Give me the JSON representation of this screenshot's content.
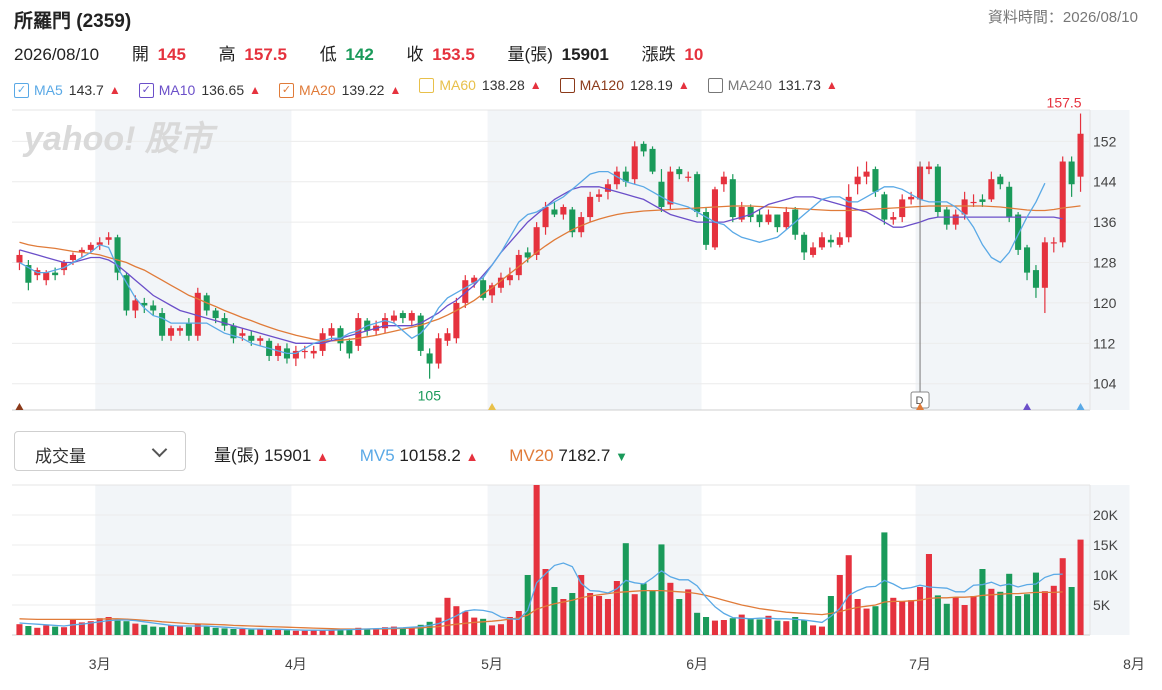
{
  "header": {
    "title": "所羅門 (2359)",
    "data_time_label": "資料時間：2026/08/10"
  },
  "quote": {
    "date": "2026/08/10",
    "open_label": "開",
    "open": "145",
    "high_label": "高",
    "high": "157.5",
    "low_label": "低",
    "low": "142",
    "close_label": "收",
    "close": "153.5",
    "volume_label": "量(張)",
    "volume": "15901",
    "change_label": "漲跌",
    "change": "10"
  },
  "ma_legend": [
    {
      "name": "MA5",
      "value": "143.7",
      "color": "#5aa9e6",
      "checked": true,
      "trend": "▲"
    },
    {
      "name": "MA10",
      "value": "136.65",
      "color": "#6b4fc9",
      "checked": true,
      "trend": "▲"
    },
    {
      "name": "MA20",
      "value": "139.22",
      "color": "#e07b39",
      "checked": true,
      "trend": "▲"
    },
    {
      "name": "MA60",
      "value": "138.28",
      "color": "#e8c04a",
      "checked": false,
      "trend": "▲"
    },
    {
      "name": "MA120",
      "value": "128.19",
      "color": "#8b3a1a",
      "checked": false,
      "trend": "▲"
    },
    {
      "name": "MA240",
      "value": "131.73",
      "color": "#777777",
      "checked": false,
      "trend": "▲"
    }
  ],
  "volume_panel": {
    "selector_label": "成交量",
    "vol_label": "量(張)",
    "vol_value": "15901",
    "vol_trend": "▲",
    "mv5_label": "MV5",
    "mv5_value": "10158.2",
    "mv5_trend": "▲",
    "mv20_label": "MV20",
    "mv20_value": "7182.7",
    "mv20_trend": "▼"
  },
  "watermark": "yahoo! 股市",
  "colors": {
    "up": "#e5323e",
    "down": "#1a9a5a",
    "ma5": "#5aa9e6",
    "ma10": "#6b4fc9",
    "ma20": "#e07b39",
    "band": "#f2f5f8",
    "grid": "#ececec"
  },
  "chart_data": {
    "type": "candlestick",
    "price_axis": {
      "ticks": [
        104,
        112,
        120,
        128,
        136,
        144,
        152
      ],
      "ylim": [
        98.8,
        158.2
      ]
    },
    "volume_axis": {
      "ticks": [
        "5K",
        "10K",
        "15K",
        "20K"
      ],
      "tick_values": [
        5000,
        10000,
        15000,
        20000
      ],
      "ylim": [
        0,
        25000
      ]
    },
    "month_labels": [
      {
        "label": "3月",
        "index": 9
      },
      {
        "label": "4月",
        "index": 31
      },
      {
        "label": "5月",
        "index": 53
      },
      {
        "label": "6月",
        "index": 76
      },
      {
        "label": "7月",
        "index": 101
      },
      {
        "label": "8月",
        "index": 125
      }
    ],
    "shaded_months": [
      [
        9,
        30
      ],
      [
        53,
        76
      ],
      [
        101,
        124
      ]
    ],
    "annotations": {
      "max_label": "157.5",
      "min_label": "105",
      "event_marker": "D"
    },
    "close": [
      129.5,
      124,
      126.5,
      126,
      125.5,
      128,
      129.5,
      130.5,
      131.5,
      132,
      133,
      126,
      118.5,
      120.5,
      119.5,
      118.5,
      113.5,
      115,
      115,
      113.5,
      122,
      118.5,
      117,
      115.5,
      113,
      114,
      112.5,
      113,
      109.5,
      111.5,
      109,
      110.5,
      110.5,
      110.5,
      114,
      115,
      112,
      110,
      117,
      114.5,
      115.5,
      117,
      117.5,
      117,
      118,
      110.5,
      108,
      113,
      114,
      120,
      124.5,
      125,
      121,
      123.5,
      125,
      125.5,
      129.5,
      129,
      135,
      139,
      137.5,
      139,
      134,
      137,
      141,
      141.5,
      143.5,
      146,
      144,
      151,
      150,
      146,
      139,
      146,
      145.5,
      145,
      138,
      131.5,
      142.5,
      145,
      137,
      139,
      137,
      136,
      137.5,
      135,
      138,
      133.5,
      130,
      131,
      133,
      132,
      133,
      141,
      145,
      146,
      142,
      136.5,
      137,
      140.5,
      141,
      147,
      147,
      138,
      135.5,
      137.5,
      140.5,
      140,
      140,
      144.5,
      143.5,
      137,
      130.5,
      126,
      123,
      132,
      132,
      148,
      143.5,
      153.5
    ],
    "open": [
      128,
      127.5,
      125.5,
      124.5,
      126,
      126.5,
      128.5,
      130,
      130.5,
      131.5,
      132.5,
      133,
      125.5,
      118.5,
      120,
      119.5,
      118,
      113.5,
      114.5,
      116,
      113.5,
      121.5,
      118.5,
      117,
      115.5,
      113.5,
      113.5,
      112.5,
      112.5,
      109.5,
      111,
      109,
      110.5,
      110,
      110.5,
      113.5,
      115,
      112.5,
      111.5,
      116.5,
      114.5,
      115,
      116.5,
      118,
      116.5,
      117.5,
      110,
      108,
      112.5,
      113,
      120,
      124,
      124.5,
      121.5,
      123,
      124.5,
      125.5,
      130,
      129.5,
      135,
      138.5,
      137.5,
      138.5,
      134,
      137,
      141,
      142,
      143.5,
      146,
      144.5,
      151.5,
      150.5,
      144,
      139.5,
      146.5,
      145,
      145.5,
      138,
      131,
      143.5,
      144.5,
      136.5,
      139,
      137.5,
      136,
      137.5,
      135,
      138.5,
      133.5,
      129.5,
      131,
      132.5,
      131.5,
      133,
      143.5,
      145,
      146.5,
      141.5,
      136.5,
      137,
      140.5,
      140.5,
      146.5,
      147,
      138.5,
      135.5,
      137.5,
      140,
      140.5,
      140.5,
      145,
      143,
      137.5,
      131,
      126.5,
      123,
      132,
      132,
      148,
      145
    ],
    "high": [
      130.5,
      128.5,
      127,
      126.5,
      127,
      128.5,
      130,
      131,
      132,
      133,
      134,
      133.5,
      126,
      121.5,
      121,
      120.5,
      119,
      115.5,
      115.5,
      117,
      123,
      122,
      119,
      118,
      116,
      115,
      114.5,
      113.5,
      113,
      112,
      112,
      111.5,
      111.5,
      111.5,
      115,
      116,
      115.5,
      113,
      118,
      117,
      116.5,
      118,
      118.5,
      118.5,
      118.5,
      118,
      111,
      114,
      115,
      121,
      125.5,
      125.5,
      125,
      124,
      126,
      127,
      130.5,
      131,
      136,
      140,
      140,
      139.5,
      139,
      138,
      142,
      142.5,
      144.5,
      147,
      147,
      152,
      152,
      151,
      146.5,
      147,
      147,
      146,
      146,
      139,
      143,
      146,
      145.5,
      140,
      139.5,
      138.5,
      138.5,
      137.5,
      139,
      139,
      134,
      132,
      134,
      133.5,
      134,
      143.5,
      147,
      148,
      147,
      142,
      138,
      141.5,
      142,
      148,
      148,
      147.5,
      139,
      138.5,
      142,
      141.5,
      141.5,
      146,
      145.5,
      144,
      138,
      131.5,
      127.5,
      133,
      133,
      149,
      149,
      157.5
    ],
    "low": [
      126.5,
      122.5,
      124.5,
      123.5,
      124.5,
      125.5,
      127.5,
      129,
      130,
      130.5,
      131.5,
      124.5,
      117.5,
      117,
      118,
      117.5,
      112.5,
      112.5,
      113.5,
      112.5,
      112.5,
      117.5,
      116,
      114.5,
      112,
      112.5,
      111.5,
      111.5,
      108.5,
      108.5,
      108,
      107.5,
      109,
      109,
      109.5,
      112.5,
      110.5,
      109,
      110.5,
      113.5,
      113.5,
      114,
      116,
      116,
      115.5,
      109.5,
      105,
      107,
      111.5,
      112,
      119,
      123,
      120.5,
      120,
      122,
      123.5,
      124.5,
      128,
      128.5,
      133.5,
      137,
      136.5,
      133,
      133,
      136,
      140,
      140.5,
      142.5,
      143,
      143.5,
      149,
      145.5,
      138,
      138.5,
      144.5,
      144,
      137,
      130.5,
      130.5,
      142,
      136,
      136,
      136,
      135,
      135.5,
      134,
      134.5,
      132.5,
      128.5,
      129,
      130.5,
      131,
      131,
      132,
      141.5,
      143.5,
      141,
      135.5,
      135.5,
      136,
      139.5,
      139.5,
      145.5,
      137,
      134.5,
      134.5,
      136.5,
      139,
      139,
      140,
      142.5,
      136,
      129.5,
      124.5,
      121,
      118,
      130,
      131,
      141,
      142
    ],
    "volume": [
      1800,
      1500,
      1200,
      1600,
      1400,
      1300,
      2500,
      2100,
      2300,
      2800,
      3000,
      2400,
      2300,
      1900,
      1700,
      1400,
      1300,
      1600,
      1500,
      1300,
      1800,
      1400,
      1200,
      1100,
      1000,
      1000,
      900,
      1000,
      1000,
      900,
      800,
      700,
      700,
      900,
      800,
      800,
      1000,
      900,
      1200,
      1000,
      1000,
      1300,
      1400,
      1200,
      1300,
      1700,
      2200,
      2900,
      6200,
      4800,
      3900,
      2900,
      2700,
      1600,
      1800,
      3000,
      4000,
      10000,
      25000,
      11000,
      8000,
      6000,
      7000,
      10000,
      7000,
      6500,
      6000,
      9000,
      15300,
      6800,
      8600,
      7500,
      15100,
      8700,
      6000,
      7600,
      3700,
      3000,
      2400,
      2500,
      2800,
      3400,
      2800,
      2600,
      3200,
      2400,
      2300,
      3000,
      2500,
      1600,
      1400,
      6500,
      10000,
      13300,
      6000,
      4400,
      4800,
      17100,
      6200,
      5600,
      5800,
      8000,
      13500,
      6600,
      5200,
      6300,
      5000,
      6500,
      11000,
      7700,
      7200,
      10200,
      6500,
      6800,
      10400,
      7300,
      8200,
      12800,
      8000,
      15900
    ],
    "ma5": [
      128,
      127,
      126,
      126,
      126.5,
      127,
      128,
      129,
      130,
      131.5,
      131,
      127,
      124,
      121,
      119,
      117.5,
      117,
      116,
      116,
      116,
      116,
      116,
      115,
      114,
      113.5,
      113,
      112,
      111.5,
      111,
      110.5,
      110,
      110,
      111,
      112,
      112.5,
      113,
      113,
      114,
      114.5,
      115.5,
      116,
      116.5,
      116,
      114.5,
      113,
      114,
      116,
      119,
      121,
      122,
      123,
      124,
      125,
      127.5,
      130,
      133,
      136,
      137.5,
      138,
      139,
      140,
      141,
      142.5,
      144,
      145.5,
      146,
      146,
      145,
      144,
      143.5,
      143,
      142,
      141,
      140,
      139.5,
      139,
      138,
      137,
      136,
      135.5,
      134,
      133,
      132.5,
      132,
      132.5,
      133,
      134.5,
      136,
      137.5,
      139,
      140.5,
      141,
      141,
      140,
      140,
      141,
      142,
      143,
      143,
      142.5,
      141.5,
      140.5,
      140,
      140,
      140,
      139,
      137.5,
      135,
      131.5,
      129,
      128,
      130,
      133.5,
      137,
      140,
      143.7
    ],
    "ma10": [
      130.5,
      130,
      129.5,
      129,
      128.5,
      128,
      128,
      128.5,
      129,
      129,
      128.5,
      127.5,
      126,
      124.5,
      123,
      121.5,
      120.5,
      119.5,
      118.5,
      118,
      117.5,
      117,
      116.5,
      116,
      115.5,
      115,
      114.5,
      114,
      113.5,
      113,
      112.5,
      112,
      112,
      112,
      112,
      112.5,
      113,
      113.5,
      114,
      114.5,
      115,
      115.5,
      115.5,
      115.5,
      115.5,
      116,
      117,
      118,
      119.5,
      120.5,
      122,
      123.5,
      125.5,
      127.5,
      130,
      132,
      134,
      136,
      137.5,
      139,
      140.5,
      141.5,
      142.5,
      143,
      143,
      143,
      142.5,
      142,
      141.5,
      141,
      140.5,
      139.5,
      138.5,
      137.5,
      137,
      136.5,
      136,
      136,
      136,
      136,
      136.5,
      137,
      137.5,
      138.5,
      139.5,
      140,
      140.5,
      141,
      141,
      141,
      140.5,
      140,
      139.5,
      139,
      138.5,
      138,
      137,
      136,
      135,
      135,
      135.5,
      136,
      136.65,
      137,
      137,
      137,
      137,
      137,
      137,
      137,
      137,
      137,
      137,
      137,
      137,
      137,
      137,
      136.65
    ],
    "ma20": [
      132,
      131.5,
      131.2,
      131,
      130.8,
      130.5,
      130.2,
      130,
      129.8,
      129.5,
      129,
      128.5,
      128,
      127.2,
      126.5,
      125.5,
      124.5,
      123.5,
      122.5,
      121.5,
      120.8,
      120,
      119.3,
      118.5,
      117.8,
      117.1,
      116.5,
      115.8,
      115.2,
      114.6,
      114.1,
      113.6,
      113.2,
      112.8,
      112.5,
      112.5,
      112.6,
      112.8,
      113,
      113.3,
      113.6,
      114,
      114.4,
      114.8,
      115.2,
      115.6,
      116.2,
      116.8,
      117.6,
      118.5,
      119.5,
      120.5,
      121.8,
      123,
      124.4,
      125.8,
      127.2,
      128.6,
      130,
      131.3,
      132.5,
      133.5,
      134.5,
      135.3,
      136,
      136.6,
      137.1,
      137.5,
      137.8,
      138,
      138.2,
      138.3,
      138.4,
      138.5,
      138.6,
      138.7,
      138.8,
      138.9,
      139,
      139.1,
      139.2,
      139.2,
      139.2,
      139.1,
      139,
      138.9,
      138.8,
      138.7,
      138.6,
      138.5,
      138.4,
      138.3,
      138.3,
      138.3,
      138.4,
      138.5,
      138.6,
      138.7,
      138.8,
      138.9,
      139,
      139.1,
      139.2,
      139.2,
      139.2,
      139.2,
      139.2,
      139.2,
      139.2,
      139.1,
      139,
      138.8,
      138.6,
      138.4,
      138.3,
      138.3,
      138.5,
      138.8,
      139,
      139.22
    ],
    "mv5": [
      2000,
      1900,
      1800,
      1700,
      1600,
      1500,
      1700,
      1800,
      2000,
      2200,
      2400,
      2500,
      2500,
      2400,
      2200,
      2000,
      1800,
      1600,
      1500,
      1500,
      1500,
      1500,
      1400,
      1300,
      1200,
      1100,
      1000,
      1000,
      950,
      950,
      900,
      850,
      800,
      800,
      800,
      800,
      850,
      900,
      950,
      1000,
      1050,
      1100,
      1150,
      1200,
      1300,
      1400,
      1600,
      1900,
      2500,
      3200,
      4000,
      4200,
      4100,
      3800,
      3000,
      2700,
      2600,
      4100,
      8700,
      10200,
      11600,
      12000,
      11400,
      8600,
      7400,
      7300,
      7000,
      7700,
      9100,
      8700,
      8500,
      9500,
      10700,
      9700,
      9200,
      9200,
      8200,
      6300,
      4700,
      3600,
      2900,
      2800,
      2700,
      2800,
      2800,
      2700,
      2700,
      2600,
      2500,
      2300,
      2100,
      3100,
      4400,
      6600,
      7400,
      8000,
      8100,
      9100,
      8500,
      7700,
      7900,
      8300,
      8000,
      7900,
      7800,
      7200,
      7200,
      8300,
      8400,
      8800,
      8200,
      8500,
      8000,
      8400,
      8500,
      9600,
      10100,
      10158.2
    ],
    "mv20": [
      2700,
      2650,
      2600,
      2600,
      2600,
      2600,
      2600,
      2600,
      2600,
      2650,
      2700,
      2700,
      2650,
      2550,
      2450,
      2350,
      2200,
      2100,
      2000,
      1900,
      1850,
      1800,
      1750,
      1700,
      1600,
      1550,
      1500,
      1450,
      1400,
      1350,
      1300,
      1250,
      1200,
      1150,
      1100,
      1050,
      1000,
      1000,
      1000,
      1000,
      1000,
      1000,
      1050,
      1100,
      1150,
      1200,
      1300,
      1400,
      1600,
      1800,
      1950,
      2100,
      2200,
      2300,
      2450,
      2650,
      2850,
      3300,
      4300,
      4800,
      5200,
      5500,
      5800,
      6200,
      6500,
      6700,
      6900,
      7100,
      7200,
      7300,
      7400,
      7400,
      7400,
      7300,
      7200,
      7100,
      6900,
      6600,
      6200,
      5800,
      5400,
      5000,
      4700,
      4400,
      4200,
      4000,
      3800,
      3700,
      3600,
      3500,
      3400,
      3600,
      3900,
      4300,
      4600,
      4800,
      5000,
      5500,
      5600,
      5600,
      5700,
      5800,
      6100,
      6200,
      6200,
      6300,
      6300,
      6400,
      6600,
      6700,
      6800,
      6900,
      6900,
      7000,
      7100,
      7100,
      7100,
      7182.7
    ]
  }
}
